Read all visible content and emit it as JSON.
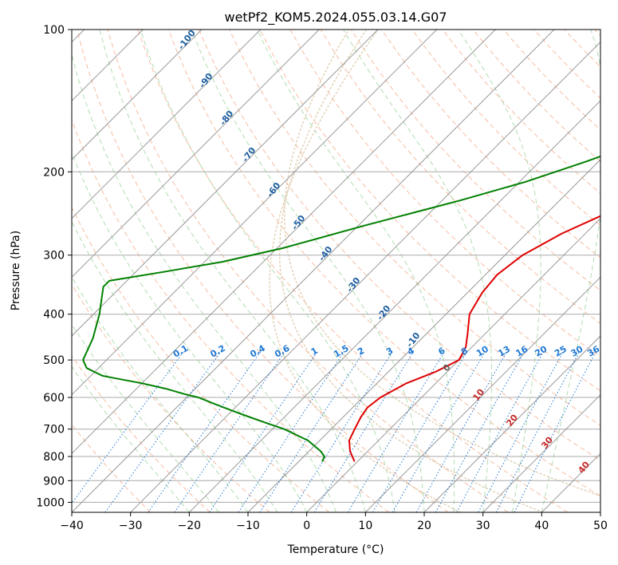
{
  "chart_data": {
    "type": "skew-t",
    "title": "wetPf2_KOM5.2024.055.03.14.G07",
    "xlabel": "Temperature (°C)",
    "ylabel": "Pressure (hPa)",
    "xlim": [
      -40,
      50
    ],
    "ylim": [
      1050,
      100
    ],
    "y_scale": "log",
    "grid": true,
    "x_ticks": [
      -40,
      -30,
      -20,
      -10,
      0,
      10,
      20,
      30,
      40,
      50
    ],
    "y_ticks": [
      100,
      200,
      300,
      400,
      500,
      600,
      700,
      800,
      900,
      1000
    ],
    "colors": {
      "temperature": "#e00000",
      "dewpoint": "#008000",
      "isotherm": "#999999",
      "isobar": "#aaaaaa",
      "dry_adiabat": "#f4a582",
      "moist_adiabat": "#9ed39e",
      "mixing_ratio": "#1f78d4",
      "isotherm_label": "#1f5fa0",
      "isotherm_label_warm": "#c62828",
      "theta_e_curve": "#d9c4a0"
    },
    "temperature": {
      "pressure": [
        820,
        780,
        740,
        700,
        660,
        630,
        600,
        560,
        530,
        500,
        470,
        440,
        400,
        360,
        330,
        300,
        270,
        240,
        220,
        200,
        180,
        160,
        140,
        125,
        113,
        105,
        100
      ],
      "temp": [
        -0.5,
        -3,
        -5,
        -6,
        -7,
        -7.5,
        -7,
        -5,
        -2,
        0,
        -1,
        -3,
        -6,
        -7.5,
        -8,
        -7,
        -4,
        1,
        6,
        13,
        22,
        32,
        38,
        46,
        57,
        64,
        67
      ]
    },
    "dewpoint": {
      "pressure": [
        820,
        800,
        780,
        740,
        700,
        680,
        660,
        640,
        620,
        600,
        590,
        575,
        560,
        545,
        540,
        530,
        520,
        500,
        450,
        400,
        350,
        340,
        325,
        310,
        290,
        260,
        230,
        210,
        190,
        175,
        168,
        165,
        160,
        150,
        140,
        130,
        120,
        112,
        106,
        100
      ],
      "dewp": [
        -6,
        -6.5,
        -8,
        -12,
        -18,
        -22,
        -26,
        -30,
        -34,
        -38,
        -41,
        -45,
        -50,
        -56,
        -58,
        -60,
        -62,
        -64,
        -66,
        -69,
        -73,
        -73,
        -65,
        -57,
        -49,
        -39,
        -27,
        -19,
        -12,
        -7,
        -4,
        -10,
        -14,
        -13,
        -11,
        -7,
        -2,
        1,
        8,
        15
      ]
    },
    "isotherm_labels": [
      "-100",
      "-90",
      "-80",
      "-70",
      "-60",
      "-50",
      "-40",
      "-30",
      "-20",
      "-10",
      "0",
      "10",
      "20",
      "30",
      "40"
    ],
    "mixing_ratio_labels": [
      "0.1",
      "0.2",
      "0.4",
      "0.6",
      "1",
      "1.5",
      "2",
      "3",
      "4",
      "6",
      "8",
      "10",
      "13",
      "16",
      "20",
      "25",
      "30",
      "36"
    ]
  }
}
